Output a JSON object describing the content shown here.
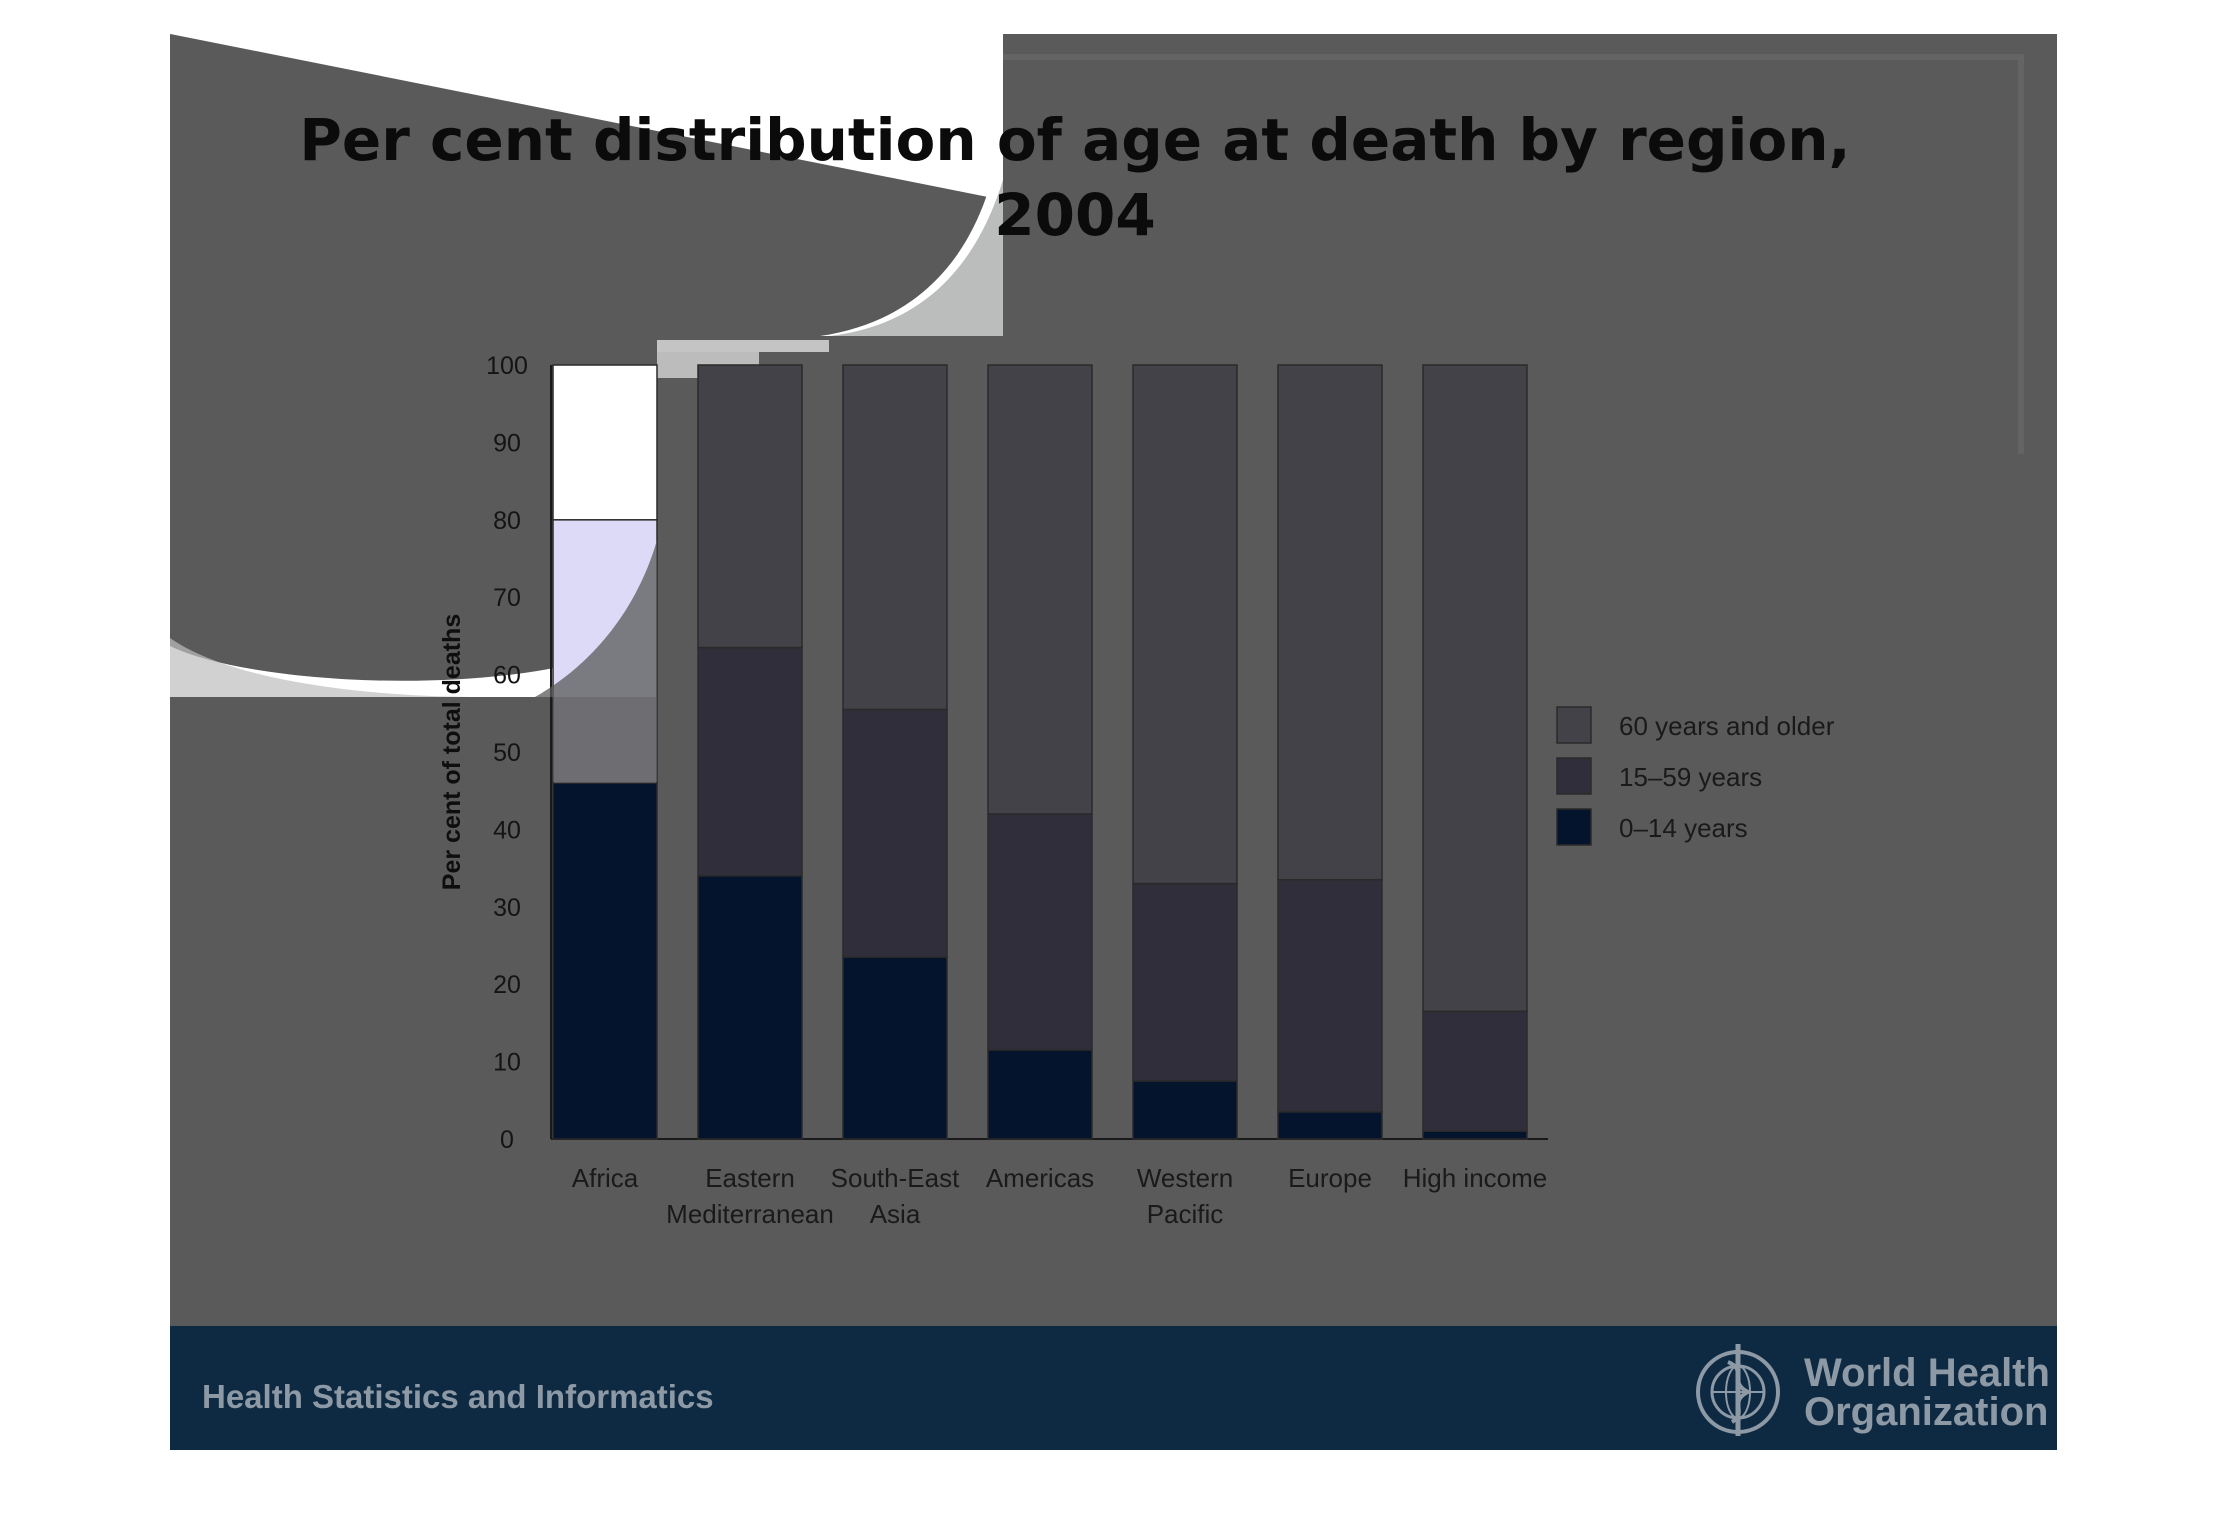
{
  "colors": {
    "panel": "#5a5a5a",
    "panel_border": "#646464",
    "footer": "#0e2a42",
    "bar_top": "#434248",
    "bar_mid": "#302e3a",
    "bar_bot": "#03142c",
    "africa_top": "#ffffff",
    "africa_mid": "#dcdaf6"
  },
  "slide": {
    "title_line1": "Per cent distribution of age at death by region,",
    "title_line2": "2004"
  },
  "footer": {
    "left_text": "Health Statistics and Informatics",
    "org_line1": "World Health",
    "org_line2": "Organization",
    "logo_icon": "who-emblem-icon"
  },
  "chart_data": {
    "type": "bar",
    "stacked": true,
    "title": "",
    "xlabel": "",
    "ylabel": "Per cent of total deaths",
    "ylim": [
      0,
      100
    ],
    "yticks": [
      0,
      10,
      20,
      30,
      40,
      50,
      60,
      70,
      80,
      90,
      100
    ],
    "categories": [
      [
        "Africa"
      ],
      [
        "Eastern",
        "Mediterranean"
      ],
      [
        "South-East",
        "Asia"
      ],
      [
        "Americas"
      ],
      [
        "Western",
        "Pacific"
      ],
      [
        "Europe"
      ],
      [
        "High income"
      ]
    ],
    "series": [
      {
        "name": "0–14 years",
        "values": [
          46,
          34,
          23.5,
          11.5,
          7.5,
          3.5,
          1
        ]
      },
      {
        "name": "15–59 years",
        "values": [
          34,
          29.5,
          32,
          30.5,
          25.5,
          30,
          15.5
        ]
      },
      {
        "name": "60 years and older",
        "values": [
          20,
          36.5,
          44.5,
          58,
          67,
          66.5,
          83.5
        ]
      }
    ],
    "legend": [
      "60 years and older",
      "15–59 years",
      "0–14 years"
    ],
    "legend_position": "right",
    "grid": false
  }
}
